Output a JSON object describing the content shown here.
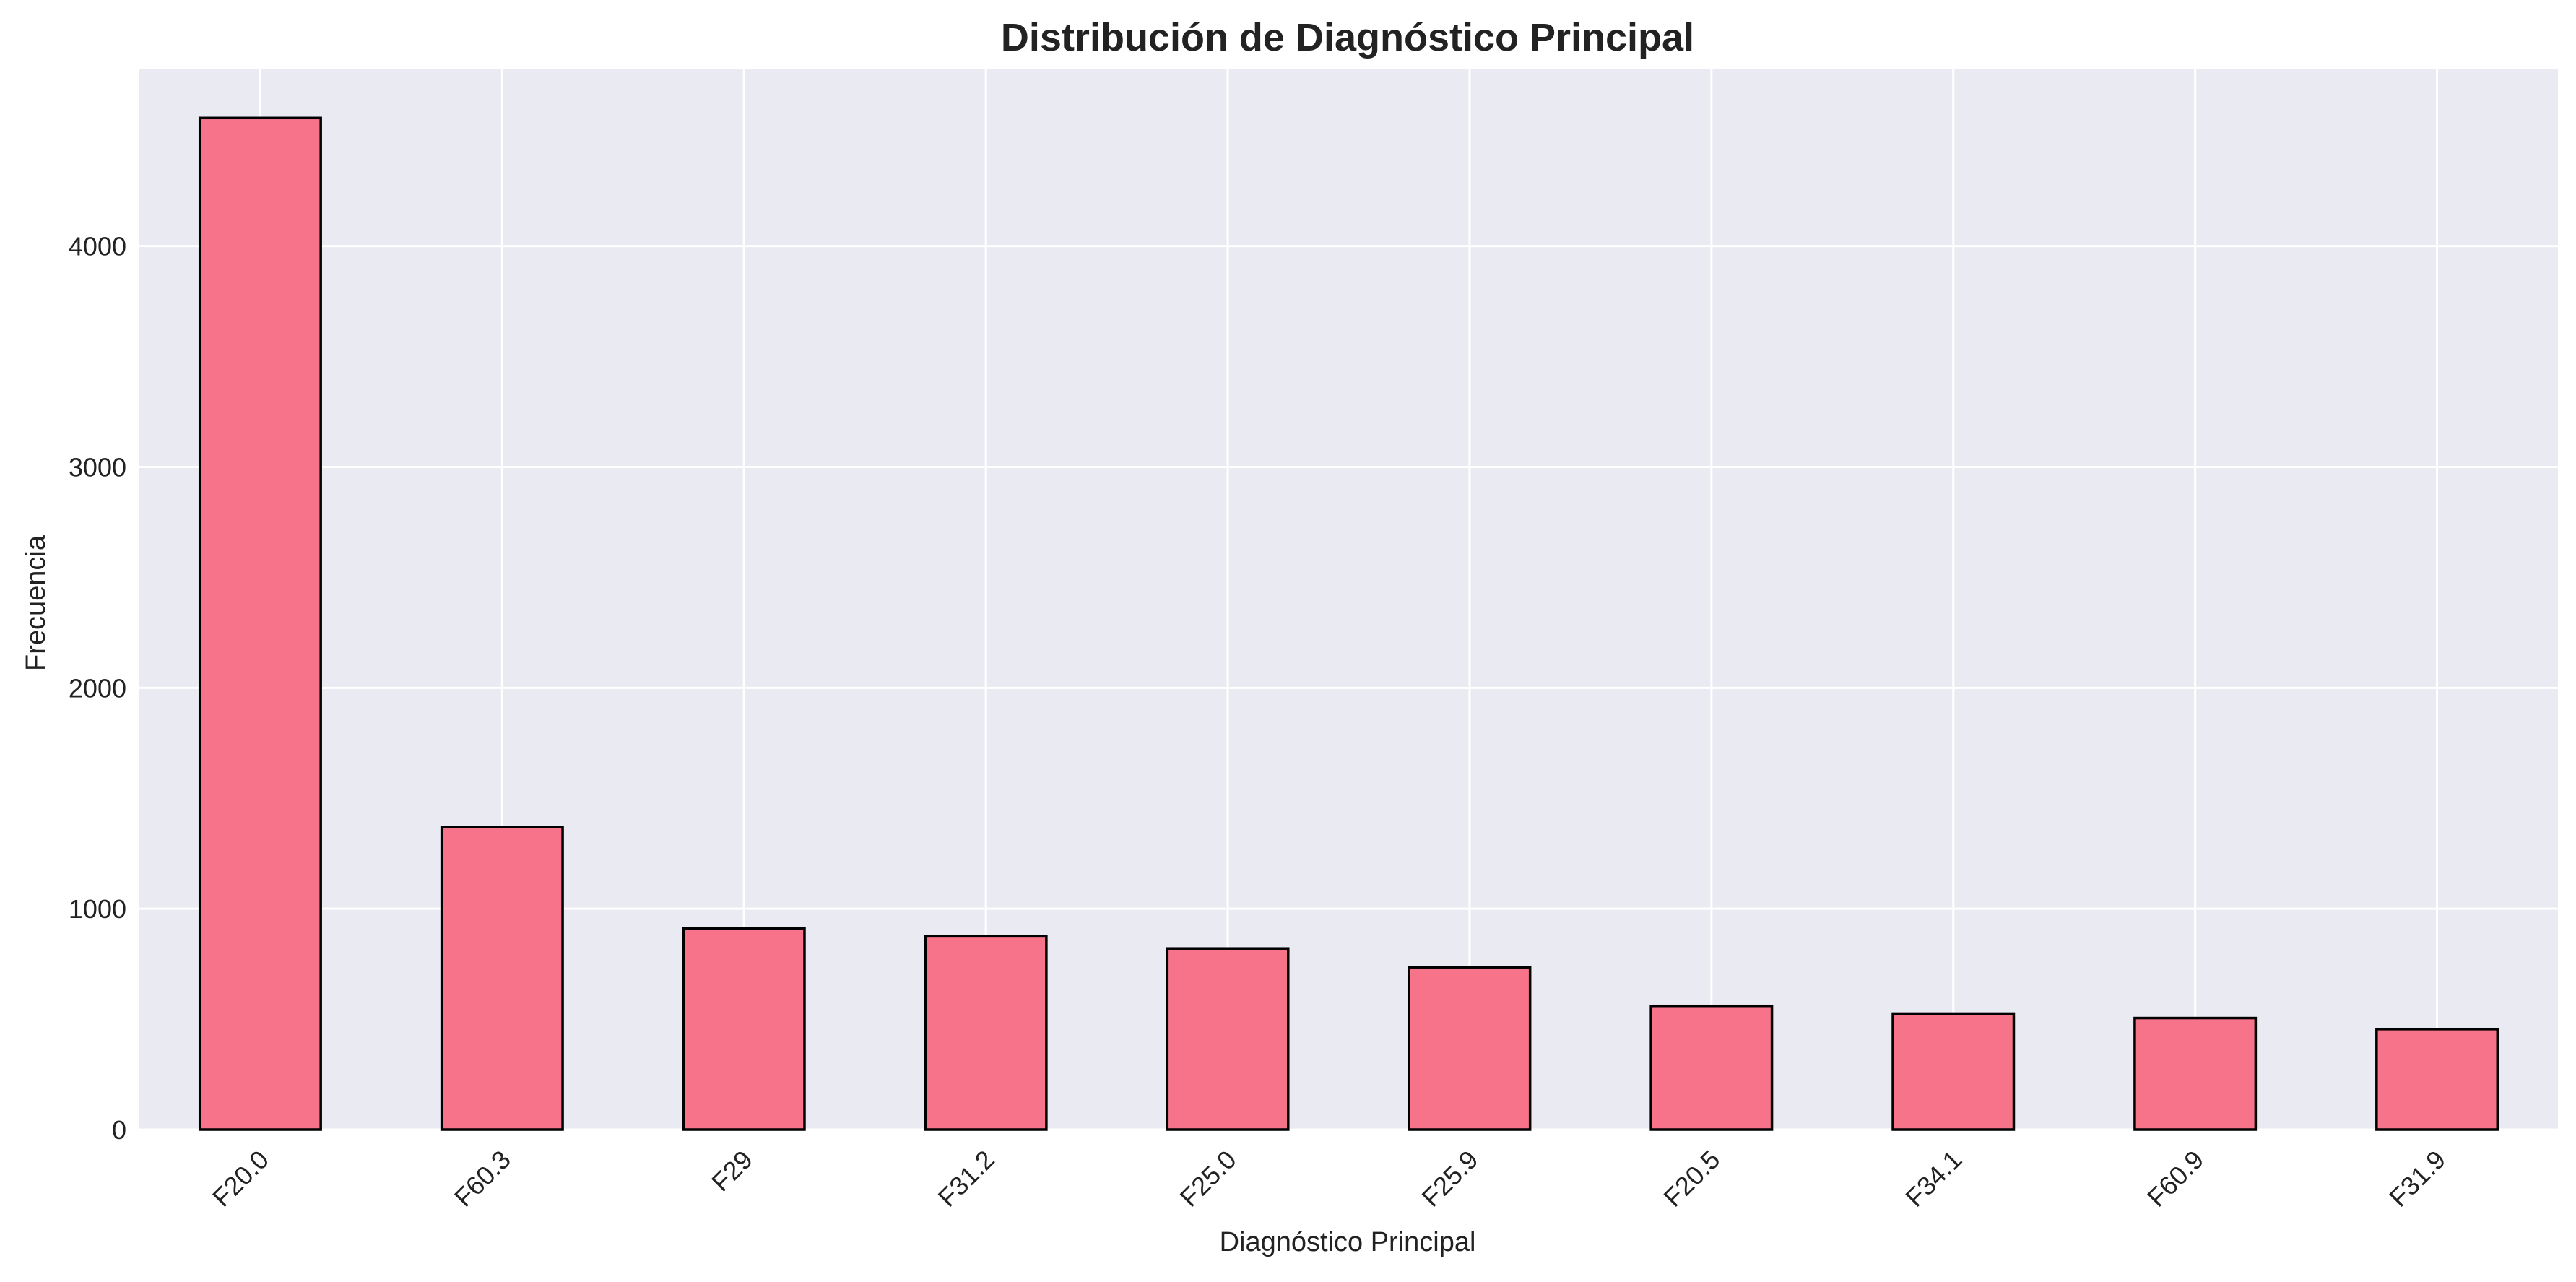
{
  "chart_data": {
    "type": "bar",
    "title": "Distribución de Diagnóstico Principal",
    "xlabel": "Diagnóstico Principal",
    "ylabel": "Frecuencia",
    "categories": [
      "F20.0",
      "F60.3",
      "F29",
      "F31.2",
      "F25.0",
      "F25.9",
      "F20.5",
      "F34.1",
      "F60.9",
      "F31.9"
    ],
    "values": [
      4580,
      1370,
      910,
      875,
      820,
      735,
      560,
      525,
      505,
      455
    ],
    "ylim": [
      0,
      4800
    ],
    "yticks": [
      0,
      1000,
      2000,
      3000,
      4000
    ],
    "grid": true,
    "legend": "none",
    "colors": {
      "bar_fill": "#f7738a",
      "bar_edge": "#000000",
      "plot_background": "#eaeaf2",
      "grid": "#ffffff"
    }
  }
}
